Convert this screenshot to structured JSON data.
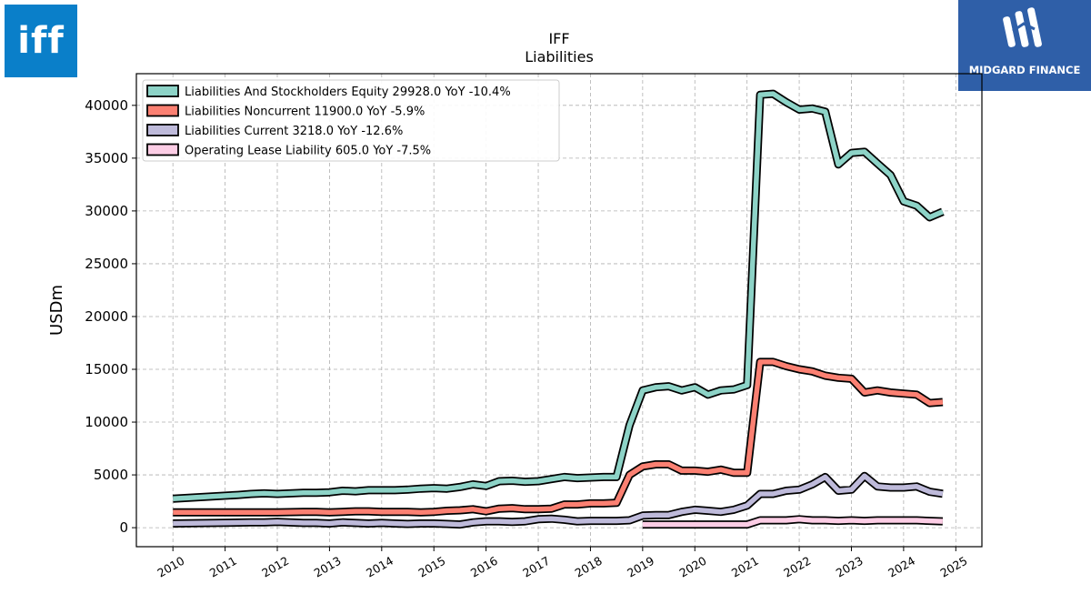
{
  "logos": {
    "left_text": "iff",
    "right_text": "MIDGARD FINANCE"
  },
  "chart_data": {
    "type": "line",
    "title": "IFF",
    "subtitle": "Liabilities",
    "ylabel": "USDm",
    "xlim": [
      2009.3,
      2025.5
    ],
    "ylim": [
      -1800,
      43000
    ],
    "yticks": [
      0,
      5000,
      10000,
      15000,
      20000,
      25000,
      30000,
      35000,
      40000
    ],
    "xticks": [
      "2010",
      "2011",
      "2012",
      "2013",
      "2014",
      "2015",
      "2016",
      "2017",
      "2018",
      "2019",
      "2020",
      "2021",
      "2022",
      "2023",
      "2024",
      "2025"
    ],
    "grid": true,
    "legend_position": "top-left",
    "series": [
      {
        "name": "Liabilities And Stockholders Equity  29928.0 YoY -10.4%",
        "color": "#8dd3c7",
        "x": [
          "2009-12-31",
          "2011-03-31",
          "2011-06-30",
          "2011-09-30",
          "2011-12-31",
          "2012-03-31",
          "2012-06-30",
          "2012-09-30",
          "2012-12-31",
          "2013-03-31",
          "2013-06-30",
          "2013-09-30",
          "2013-12-31",
          "2014-03-31",
          "2014-06-30",
          "2014-09-30",
          "2014-12-31",
          "2015-03-31",
          "2015-06-30",
          "2015-09-30",
          "2015-12-31",
          "2016-03-31",
          "2016-06-30",
          "2016-09-30",
          "2016-12-31",
          "2017-03-31",
          "2017-06-30",
          "2017-09-30",
          "2017-12-31",
          "2018-03-31",
          "2018-06-30",
          "2018-09-30",
          "2018-12-31",
          "2019-03-31",
          "2019-06-30",
          "2019-09-30",
          "2019-12-31",
          "2020-03-31",
          "2020-06-30",
          "2020-09-30",
          "2020-12-31",
          "2021-03-31",
          "2021-06-30",
          "2021-09-30",
          "2021-12-31",
          "2022-03-31",
          "2022-06-30",
          "2022-09-30",
          "2022-12-31",
          "2023-03-31",
          "2023-06-30",
          "2023-09-30",
          "2023-12-31",
          "2024-03-31",
          "2024-06-30",
          "2024-09-30"
        ],
        "y": [
          2750,
          3100,
          3200,
          3250,
          3200,
          3250,
          3300,
          3300,
          3350,
          3500,
          3450,
          3550,
          3550,
          3550,
          3600,
          3700,
          3750,
          3700,
          3850,
          4100,
          3950,
          4400,
          4450,
          4350,
          4400,
          4600,
          4800,
          4700,
          4750,
          4800,
          4800,
          9700,
          13000,
          13300,
          13400,
          13000,
          13300,
          12600,
          13000,
          13100,
          13500,
          41000,
          41100,
          40300,
          39600,
          39700,
          39400,
          34400,
          35500,
          35600,
          34500,
          33400,
          30900,
          30500,
          29400,
          29928
        ]
      },
      {
        "name": "Liabilities Noncurrent  11900.0 YoY -5.9%",
        "color": "#fb8072",
        "x": [
          "2009-12-31",
          "2011-06-30",
          "2011-09-30",
          "2011-12-31",
          "2012-06-30",
          "2012-09-30",
          "2012-12-31",
          "2013-03-31",
          "2013-06-30",
          "2013-09-30",
          "2013-12-31",
          "2014-03-31",
          "2014-06-30",
          "2014-09-30",
          "2014-12-31",
          "2015-03-31",
          "2015-06-30",
          "2015-09-30",
          "2015-12-31",
          "2016-03-31",
          "2016-06-30",
          "2016-09-30",
          "2016-12-31",
          "2017-03-31",
          "2017-06-30",
          "2017-09-30",
          "2017-12-31",
          "2018-03-31",
          "2018-06-30",
          "2018-09-30",
          "2018-12-31",
          "2019-03-31",
          "2019-06-30",
          "2019-09-30",
          "2019-12-31",
          "2020-03-31",
          "2020-06-30",
          "2020-09-30",
          "2020-12-31",
          "2021-03-31",
          "2021-06-30",
          "2021-09-30",
          "2021-12-31",
          "2022-03-31",
          "2022-06-30",
          "2022-09-30",
          "2022-12-31",
          "2023-03-31",
          "2023-06-30",
          "2023-09-30",
          "2023-12-31",
          "2024-03-31",
          "2024-06-30",
          "2024-09-30"
        ],
        "y": [
          1450,
          1450,
          1450,
          1450,
          1500,
          1500,
          1450,
          1500,
          1550,
          1550,
          1500,
          1500,
          1500,
          1450,
          1500,
          1600,
          1650,
          1750,
          1550,
          1800,
          1850,
          1750,
          1750,
          1800,
          2200,
          2200,
          2300,
          2300,
          2350,
          5000,
          5800,
          6000,
          6000,
          5400,
          5400,
          5300,
          5500,
          5200,
          5200,
          15700,
          15700,
          15300,
          15000,
          14800,
          14400,
          14200,
          14100,
          12800,
          13000,
          12800,
          12700,
          12600,
          11800,
          11900
        ]
      },
      {
        "name": "Liabilities Current  3218.0 YoY -12.6%",
        "color": "#bebada",
        "x": [
          "2009-12-31",
          "2011-06-30",
          "2011-09-30",
          "2011-12-31",
          "2012-06-30",
          "2012-09-30",
          "2012-12-31",
          "2013-03-31",
          "2013-06-30",
          "2013-09-30",
          "2013-12-31",
          "2014-03-31",
          "2014-06-30",
          "2014-09-30",
          "2014-12-31",
          "2015-03-31",
          "2015-06-30",
          "2015-09-30",
          "2015-12-31",
          "2016-03-31",
          "2016-06-30",
          "2016-09-30",
          "2016-12-31",
          "2017-03-31",
          "2017-06-30",
          "2017-09-30",
          "2017-12-31",
          "2018-03-31",
          "2018-06-30",
          "2018-09-30",
          "2018-12-31",
          "2019-03-31",
          "2019-06-30",
          "2019-09-30",
          "2019-12-31",
          "2020-03-31",
          "2020-06-30",
          "2020-09-30",
          "2020-12-31",
          "2021-03-31",
          "2021-06-30",
          "2021-09-30",
          "2021-12-31",
          "2022-03-31",
          "2022-06-30",
          "2022-09-30",
          "2022-12-31",
          "2023-03-31",
          "2023-06-30",
          "2023-09-30",
          "2023-12-31",
          "2024-03-31",
          "2024-06-30",
          "2024-09-30"
        ],
        "y": [
          400,
          500,
          500,
          550,
          450,
          450,
          400,
          500,
          450,
          400,
          450,
          400,
          350,
          400,
          400,
          350,
          300,
          500,
          600,
          600,
          550,
          600,
          800,
          850,
          750,
          600,
          650,
          650,
          650,
          700,
          1150,
          1200,
          1200,
          1500,
          1700,
          1600,
          1500,
          1700,
          2100,
          3200,
          3200,
          3500,
          3600,
          4100,
          4800,
          3500,
          3600,
          4900,
          3900,
          3800,
          3800,
          3900,
          3400,
          3218
        ]
      },
      {
        "name": "Operating Lease Liability  605.0 YoY -7.5%",
        "color": "#fccde5",
        "x": [
          "2018-12-31",
          "2019-03-31",
          "2019-06-30",
          "2019-09-30",
          "2019-12-31",
          "2020-03-31",
          "2020-06-30",
          "2020-09-30",
          "2020-12-31",
          "2021-03-31",
          "2021-06-30",
          "2021-09-30",
          "2021-12-31",
          "2022-03-31",
          "2022-06-30",
          "2022-09-30",
          "2022-12-31",
          "2023-03-31",
          "2023-06-30",
          "2023-09-30",
          "2023-12-31",
          "2024-03-31",
          "2024-06-30",
          "2024-09-30"
        ],
        "y": [
          300,
          300,
          300,
          300,
          300,
          300,
          300,
          300,
          300,
          700,
          700,
          700,
          800,
          700,
          700,
          650,
          700,
          650,
          700,
          700,
          700,
          700,
          650,
          605
        ]
      }
    ]
  }
}
